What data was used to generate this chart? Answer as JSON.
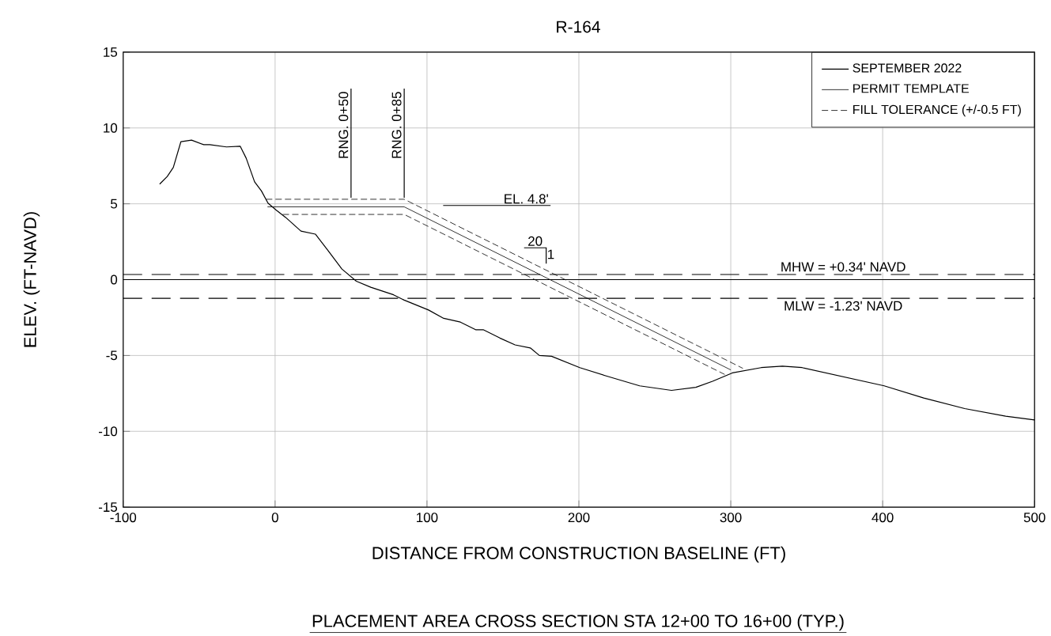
{
  "chart_data": {
    "type": "line",
    "title": "R-164",
    "xlabel": "DISTANCE FROM CONSTRUCTION BASELINE (FT)",
    "ylabel": "ELEV. (FT-NAVD)",
    "xlim": [
      -100,
      500
    ],
    "ylim": [
      -15,
      15
    ],
    "xticks": [
      -100,
      0,
      100,
      200,
      300,
      400,
      500
    ],
    "yticks": [
      -15,
      -10,
      -5,
      0,
      5,
      10,
      15
    ],
    "grid": true,
    "legend": "top right",
    "marker": "none",
    "series": [
      {
        "name": "SEPTEMBER 2022",
        "color": "#000000",
        "line_style": "solid",
        "x": [
          -76,
          -71,
          -67,
          -62,
          -55,
          -47,
          -43,
          -32,
          -23,
          -19,
          -13.5,
          -9,
          -4.7,
          0.5,
          7,
          17,
          26.5,
          35,
          44,
          53.5,
          63,
          78,
          85,
          101,
          111,
          122,
          132,
          137,
          148,
          158,
          168,
          174,
          182,
          200.6,
          218,
          240,
          261,
          277,
          288,
          301,
          320,
          334,
          347,
          374,
          401,
          427,
          454,
          481,
          500
        ],
        "values": [
          6.3,
          6.8,
          7.4,
          9.1,
          9.2,
          8.9,
          8.9,
          8.75,
          8.8,
          8.0,
          6.45,
          5.85,
          5.05,
          4.6,
          4.1,
          3.2,
          3.0,
          1.9,
          0.7,
          -0.1,
          -0.5,
          -1.0,
          -1.35,
          -2.0,
          -2.55,
          -2.8,
          -3.3,
          -3.3,
          -3.85,
          -4.3,
          -4.5,
          -5.0,
          -5.05,
          -5.8,
          -6.35,
          -7.0,
          -7.3,
          -7.1,
          -6.7,
          -6.15,
          -5.8,
          -5.7,
          -5.8,
          -6.4,
          -7.0,
          -7.8,
          -8.5,
          -9.0,
          -9.25
        ]
      },
      {
        "name": "PERMIT TEMPLATE",
        "color": "#000000",
        "line_style": "solid",
        "x": [
          -5,
          85,
          300
        ],
        "values": [
          4.8,
          4.8,
          -5.95
        ]
      },
      {
        "name": "FILL TOLERANCE (+/-0.5 FT)",
        "color": "#000000",
        "line_style": "dashed",
        "x": [
          -6,
          85,
          308
        ],
        "values": [
          5.3,
          5.3,
          -5.85
        ]
      },
      {
        "color": "#000000",
        "line_style": "dashed",
        "x": [
          5,
          85,
          296
        ],
        "values": [
          4.3,
          4.3,
          -6.25
        ]
      }
    ],
    "ref_lines": [
      {
        "axis": "y",
        "value": 0,
        "color": "#000000",
        "line_style": "solid"
      },
      {
        "axis": "y",
        "value": 0.34,
        "label": "MHW = +0.34' NAVD",
        "color": "#000000",
        "line_style": "dashed"
      },
      {
        "axis": "y",
        "value": -1.23,
        "label": "MLW = -1.23' NAVD",
        "color": "#000000",
        "line_style": "dashed"
      },
      {
        "axis": "x",
        "value": 50,
        "label": "RNG. 0+50",
        "color": "#000000",
        "line_style": "solid"
      },
      {
        "axis": "x",
        "value": 85,
        "label": "RNG. 0+85",
        "color": "#000000",
        "line_style": "solid"
      }
    ],
    "annotations": [
      "EL. 4.8'",
      "20",
      "1",
      "PLACEMENT AREA CROSS SECTION STA 12+00 TO 16+00 (TYP.)"
    ]
  }
}
